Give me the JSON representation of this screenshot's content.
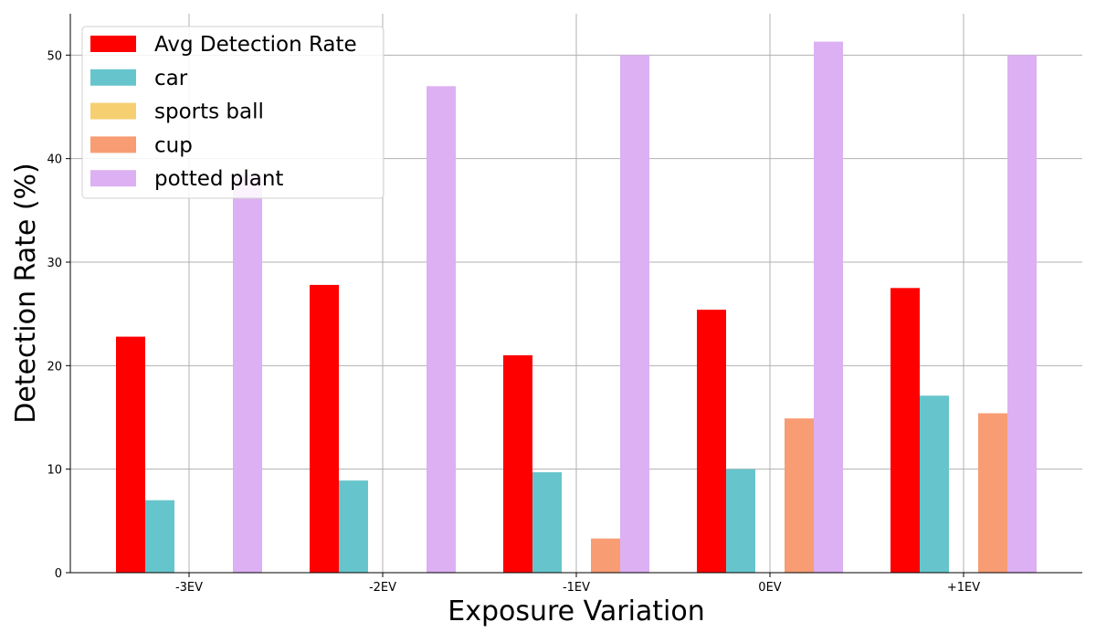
{
  "chart_data": {
    "type": "bar",
    "xlabel": "Exposure Variation",
    "ylabel": "Detection Rate (%)",
    "categories": [
      "-3EV",
      "-2EV",
      "-1EV",
      "0EV",
      "+1EV"
    ],
    "ylim": [
      0,
      54
    ],
    "yticks": [
      "0",
      "10",
      "20",
      "30",
      "40",
      "50"
    ],
    "grid": true,
    "legend_position": "top-left",
    "series": [
      {
        "name": "Avg Detection Rate",
        "color": "#ff0000",
        "values": [
          22.8,
          27.8,
          21.0,
          25.4,
          27.5
        ]
      },
      {
        "name": "car",
        "color": "#66c5cc",
        "values": [
          7.0,
          8.9,
          9.7,
          10.0,
          17.1
        ]
      },
      {
        "name": "sports ball",
        "color": "#f6cf71",
        "values": [
          0,
          0,
          0,
          0,
          0
        ]
      },
      {
        "name": "cup",
        "color": "#f89c74",
        "values": [
          0,
          0,
          3.3,
          14.9,
          15.4
        ]
      },
      {
        "name": "potted plant",
        "color": "#dcb0f2",
        "values": [
          38.5,
          47.0,
          50.0,
          51.3,
          50.0
        ]
      }
    ]
  }
}
